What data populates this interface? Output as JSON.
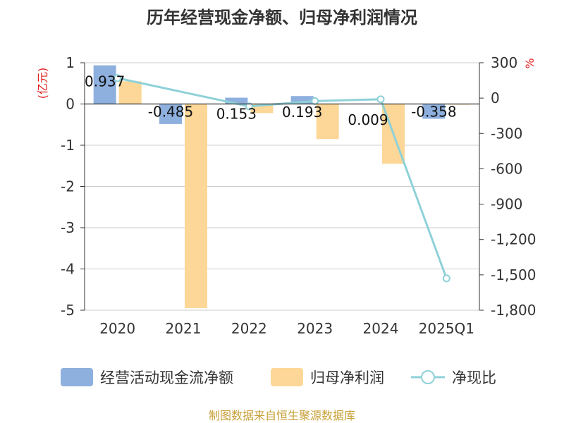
{
  "chart_data": {
    "type": "bar",
    "title": "历年经营现金净额、归母净利润情况",
    "categories": [
      "2020",
      "2021",
      "2022",
      "2023",
      "2024",
      "2025Q1"
    ],
    "series": [
      {
        "name": "经营活动现金流净额",
        "type": "bar",
        "axis": "left",
        "color": "#8eb0de",
        "values": [
          0.937,
          -0.485,
          0.153,
          0.193,
          0.009,
          -0.358
        ],
        "labels": [
          "0.937",
          "-0.485",
          "0.153",
          "0.193",
          "0.009",
          "-0.358"
        ]
      },
      {
        "name": "归母净利润",
        "type": "bar",
        "axis": "left",
        "color": "#fdd797",
        "values": [
          0.55,
          -4.95,
          -0.22,
          -0.85,
          -1.45,
          -0.01
        ]
      },
      {
        "name": "净现比",
        "type": "line",
        "axis": "right",
        "color": "#8fd1d8",
        "values": [
          170,
          null,
          -70,
          -25,
          -10,
          -1530
        ]
      }
    ],
    "y_left": {
      "label": "(亿元)",
      "min": -5,
      "max": 1,
      "ticks": [
        "1",
        "0",
        "-1",
        "-2",
        "-3",
        "-4",
        "-5"
      ]
    },
    "y_right": {
      "label": "%",
      "min": -1800,
      "max": 300,
      "ticks": [
        "300",
        "0",
        "-300",
        "-600",
        "-900",
        "-1,200",
        "-1,500",
        "-1,800"
      ]
    },
    "colors": {
      "grid": "#cccccc",
      "axis": "#333333",
      "text": "#333333",
      "unit": "#e02020",
      "footer": "#c8a038"
    }
  },
  "footer": "制图数据来自恒生聚源数据库"
}
